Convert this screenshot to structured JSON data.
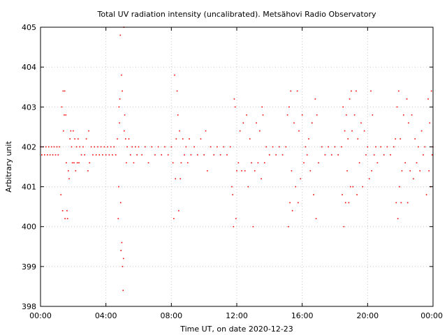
{
  "chart_data": {
    "type": "scatter",
    "title": "Total UV radiation intensity (uncalibrated). Metsähovi Radio Observatory",
    "xlabel": "Time UT, on date 2020-12-23",
    "ylabel": "Arbitrary unit",
    "xlim_hours": [
      0,
      24
    ],
    "ylim": [
      398,
      405
    ],
    "x_ticks": [
      {
        "hour": 0,
        "label": "00:00"
      },
      {
        "hour": 4,
        "label": "04:00"
      },
      {
        "hour": 8,
        "label": "08:00"
      },
      {
        "hour": 12,
        "label": "12:00"
      },
      {
        "hour": 16,
        "label": "16:00"
      },
      {
        "hour": 20,
        "label": "20:00"
      },
      {
        "hour": 24,
        "label": "00:00"
      }
    ],
    "y_ticks": [
      398,
      399,
      400,
      401,
      402,
      403,
      404,
      405
    ],
    "grid": true,
    "marker_color": "#ff0000",
    "series": [
      {
        "points": [
          [
            0.0,
            402.0
          ],
          [
            0.08,
            401.8
          ],
          [
            0.17,
            402.0
          ],
          [
            0.25,
            401.8
          ],
          [
            0.33,
            402.0
          ],
          [
            0.42,
            401.8
          ],
          [
            0.5,
            402.0
          ],
          [
            0.58,
            401.8
          ],
          [
            0.67,
            402.0
          ],
          [
            0.75,
            401.8
          ],
          [
            0.83,
            402.0
          ],
          [
            0.92,
            401.8
          ],
          [
            1.0,
            402.0
          ],
          [
            1.08,
            401.8
          ],
          [
            1.15,
            402.0
          ],
          [
            1.25,
            400.8
          ],
          [
            1.3,
            403.0
          ],
          [
            1.35,
            400.4
          ],
          [
            1.38,
            403.4
          ],
          [
            1.4,
            402.4
          ],
          [
            1.45,
            402.8
          ],
          [
            1.48,
            403.4
          ],
          [
            1.5,
            400.2
          ],
          [
            1.55,
            402.8
          ],
          [
            1.58,
            401.6
          ],
          [
            1.62,
            400.4
          ],
          [
            1.65,
            400.2
          ],
          [
            1.7,
            401.4
          ],
          [
            1.75,
            401.2
          ],
          [
            1.8,
            402.2
          ],
          [
            1.85,
            402.4
          ],
          [
            1.9,
            402.0
          ],
          [
            1.95,
            401.6
          ],
          [
            2.0,
            402.4
          ],
          [
            2.05,
            401.6
          ],
          [
            2.1,
            402.2
          ],
          [
            2.15,
            401.4
          ],
          [
            2.2,
            402.0
          ],
          [
            2.25,
            401.6
          ],
          [
            2.3,
            402.2
          ],
          [
            2.35,
            401.6
          ],
          [
            2.4,
            402.0
          ],
          [
            2.5,
            401.8
          ],
          [
            2.6,
            402.0
          ],
          [
            2.7,
            401.8
          ],
          [
            2.8,
            402.2
          ],
          [
            2.9,
            401.4
          ],
          [
            2.95,
            402.4
          ],
          [
            3.0,
            401.6
          ],
          [
            3.1,
            402.0
          ],
          [
            3.2,
            401.8
          ],
          [
            3.3,
            402.0
          ],
          [
            3.4,
            401.8
          ],
          [
            3.5,
            402.0
          ],
          [
            3.6,
            401.8
          ],
          [
            3.7,
            402.0
          ],
          [
            3.8,
            401.8
          ],
          [
            3.9,
            402.0
          ],
          [
            4.0,
            401.8
          ],
          [
            4.1,
            402.0
          ],
          [
            4.2,
            401.8
          ],
          [
            4.3,
            402.0
          ],
          [
            4.4,
            401.8
          ],
          [
            4.5,
            402.0
          ],
          [
            4.6,
            401.8
          ],
          [
            4.7,
            402.2
          ],
          [
            4.75,
            400.2
          ],
          [
            4.78,
            401.0
          ],
          [
            4.8,
            403.0
          ],
          [
            4.83,
            402.6
          ],
          [
            4.85,
            403.2
          ],
          [
            4.88,
            404.8
          ],
          [
            4.9,
            400.6
          ],
          [
            4.92,
            399.4
          ],
          [
            4.95,
            403.8
          ],
          [
            4.97,
            399.6
          ],
          [
            5.0,
            403.4
          ],
          [
            5.02,
            399.0
          ],
          [
            5.05,
            398.4
          ],
          [
            5.07,
            399.2
          ],
          [
            5.1,
            405.0
          ],
          [
            5.12,
            402.4
          ],
          [
            5.15,
            402.8
          ],
          [
            5.2,
            402.2
          ],
          [
            5.25,
            401.6
          ],
          [
            5.3,
            402.0
          ],
          [
            5.4,
            402.2
          ],
          [
            5.5,
            401.8
          ],
          [
            5.6,
            402.0
          ],
          [
            5.7,
            401.6
          ],
          [
            5.8,
            402.0
          ],
          [
            5.9,
            401.8
          ],
          [
            6.0,
            402.0
          ],
          [
            6.2,
            401.8
          ],
          [
            6.4,
            402.0
          ],
          [
            6.6,
            401.6
          ],
          [
            6.8,
            402.0
          ],
          [
            7.0,
            401.8
          ],
          [
            7.2,
            402.0
          ],
          [
            7.4,
            401.8
          ],
          [
            7.6,
            402.0
          ],
          [
            7.8,
            401.8
          ],
          [
            8.0,
            402.0
          ],
          [
            8.1,
            401.6
          ],
          [
            8.15,
            400.2
          ],
          [
            8.2,
            403.8
          ],
          [
            8.25,
            401.2
          ],
          [
            8.3,
            402.2
          ],
          [
            8.35,
            403.4
          ],
          [
            8.4,
            402.8
          ],
          [
            8.45,
            400.4
          ],
          [
            8.5,
            402.4
          ],
          [
            8.55,
            401.2
          ],
          [
            8.6,
            401.6
          ],
          [
            8.7,
            402.2
          ],
          [
            8.8,
            401.8
          ],
          [
            8.9,
            402.0
          ],
          [
            9.0,
            401.6
          ],
          [
            9.1,
            402.2
          ],
          [
            9.2,
            401.8
          ],
          [
            9.4,
            402.0
          ],
          [
            9.6,
            401.8
          ],
          [
            9.8,
            402.2
          ],
          [
            10.0,
            401.8
          ],
          [
            10.1,
            402.4
          ],
          [
            10.2,
            401.4
          ],
          [
            10.4,
            402.0
          ],
          [
            10.6,
            401.8
          ],
          [
            10.8,
            402.0
          ],
          [
            11.0,
            401.8
          ],
          [
            11.2,
            402.0
          ],
          [
            11.4,
            401.8
          ],
          [
            11.6,
            402.0
          ],
          [
            11.7,
            401.0
          ],
          [
            11.75,
            400.8
          ],
          [
            11.8,
            400.0
          ],
          [
            11.85,
            403.2
          ],
          [
            11.9,
            403.0
          ],
          [
            11.95,
            400.2
          ],
          [
            12.0,
            401.4
          ],
          [
            12.1,
            401.6
          ],
          [
            12.2,
            402.4
          ],
          [
            12.3,
            401.4
          ],
          [
            12.4,
            402.6
          ],
          [
            12.5,
            401.4
          ],
          [
            12.6,
            402.8
          ],
          [
            12.7,
            401.0
          ],
          [
            12.8,
            402.2
          ],
          [
            12.9,
            401.6
          ],
          [
            13.0,
            400.0
          ],
          [
            13.1,
            401.4
          ],
          [
            13.2,
            402.6
          ],
          [
            13.3,
            401.6
          ],
          [
            13.4,
            402.4
          ],
          [
            13.5,
            401.2
          ],
          [
            13.55,
            403.0
          ],
          [
            13.6,
            402.8
          ],
          [
            13.7,
            401.6
          ],
          [
            13.8,
            402.0
          ],
          [
            14.0,
            401.8
          ],
          [
            14.2,
            402.0
          ],
          [
            14.4,
            401.8
          ],
          [
            14.6,
            402.0
          ],
          [
            14.8,
            401.8
          ],
          [
            15.0,
            402.0
          ],
          [
            15.1,
            402.8
          ],
          [
            15.15,
            400.0
          ],
          [
            15.2,
            403.0
          ],
          [
            15.25,
            400.6
          ],
          [
            15.3,
            403.4
          ],
          [
            15.35,
            401.4
          ],
          [
            15.4,
            400.4
          ],
          [
            15.5,
            402.6
          ],
          [
            15.6,
            401.0
          ],
          [
            15.7,
            403.4
          ],
          [
            15.75,
            400.6
          ],
          [
            15.8,
            402.4
          ],
          [
            15.9,
            401.2
          ],
          [
            16.0,
            402.8
          ],
          [
            16.1,
            401.6
          ],
          [
            16.2,
            402.0
          ],
          [
            16.3,
            401.8
          ],
          [
            16.4,
            402.2
          ],
          [
            16.5,
            401.4
          ],
          [
            16.6,
            402.6
          ],
          [
            16.7,
            400.8
          ],
          [
            16.8,
            403.2
          ],
          [
            16.85,
            400.2
          ],
          [
            16.9,
            402.8
          ],
          [
            17.0,
            401.6
          ],
          [
            17.2,
            402.0
          ],
          [
            17.4,
            401.8
          ],
          [
            17.6,
            402.0
          ],
          [
            17.8,
            401.8
          ],
          [
            18.0,
            402.0
          ],
          [
            18.2,
            401.8
          ],
          [
            18.4,
            402.0
          ],
          [
            18.45,
            400.8
          ],
          [
            18.5,
            403.0
          ],
          [
            18.55,
            400.0
          ],
          [
            18.6,
            402.4
          ],
          [
            18.65,
            400.6
          ],
          [
            18.7,
            402.8
          ],
          [
            18.75,
            401.4
          ],
          [
            18.8,
            402.2
          ],
          [
            18.85,
            400.6
          ],
          [
            18.9,
            403.2
          ],
          [
            18.95,
            401.0
          ],
          [
            19.0,
            403.4
          ],
          [
            19.05,
            402.4
          ],
          [
            19.1,
            401.0
          ],
          [
            19.2,
            402.8
          ],
          [
            19.3,
            403.4
          ],
          [
            19.35,
            400.8
          ],
          [
            19.4,
            402.2
          ],
          [
            19.5,
            401.6
          ],
          [
            19.6,
            402.6
          ],
          [
            19.7,
            401.0
          ],
          [
            19.8,
            402.4
          ],
          [
            19.9,
            401.8
          ],
          [
            20.0,
            402.0
          ],
          [
            20.1,
            401.2
          ],
          [
            20.2,
            403.4
          ],
          [
            20.25,
            401.4
          ],
          [
            20.3,
            402.8
          ],
          [
            20.4,
            401.8
          ],
          [
            20.5,
            402.0
          ],
          [
            20.6,
            401.6
          ],
          [
            20.8,
            402.0
          ],
          [
            21.0,
            401.8
          ],
          [
            21.2,
            402.0
          ],
          [
            21.4,
            401.8
          ],
          [
            21.6,
            402.0
          ],
          [
            21.7,
            402.2
          ],
          [
            21.75,
            400.6
          ],
          [
            21.8,
            403.0
          ],
          [
            21.85,
            400.2
          ],
          [
            21.9,
            403.4
          ],
          [
            21.95,
            401.0
          ],
          [
            22.0,
            402.2
          ],
          [
            22.05,
            400.6
          ],
          [
            22.1,
            401.4
          ],
          [
            22.2,
            402.8
          ],
          [
            22.3,
            401.6
          ],
          [
            22.4,
            403.2
          ],
          [
            22.45,
            400.6
          ],
          [
            22.5,
            402.6
          ],
          [
            22.6,
            401.4
          ],
          [
            22.7,
            402.8
          ],
          [
            22.8,
            401.2
          ],
          [
            22.9,
            402.2
          ],
          [
            23.0,
            401.6
          ],
          [
            23.1,
            402.0
          ],
          [
            23.2,
            401.4
          ],
          [
            23.3,
            402.4
          ],
          [
            23.4,
            401.8
          ],
          [
            23.5,
            402.0
          ],
          [
            23.6,
            400.8
          ],
          [
            23.7,
            403.2
          ],
          [
            23.75,
            401.4
          ],
          [
            23.8,
            402.6
          ],
          [
            23.85,
            401.0
          ],
          [
            23.9,
            403.4
          ],
          [
            23.95,
            401.8
          ],
          [
            24.0,
            402.0
          ]
        ]
      }
    ]
  }
}
